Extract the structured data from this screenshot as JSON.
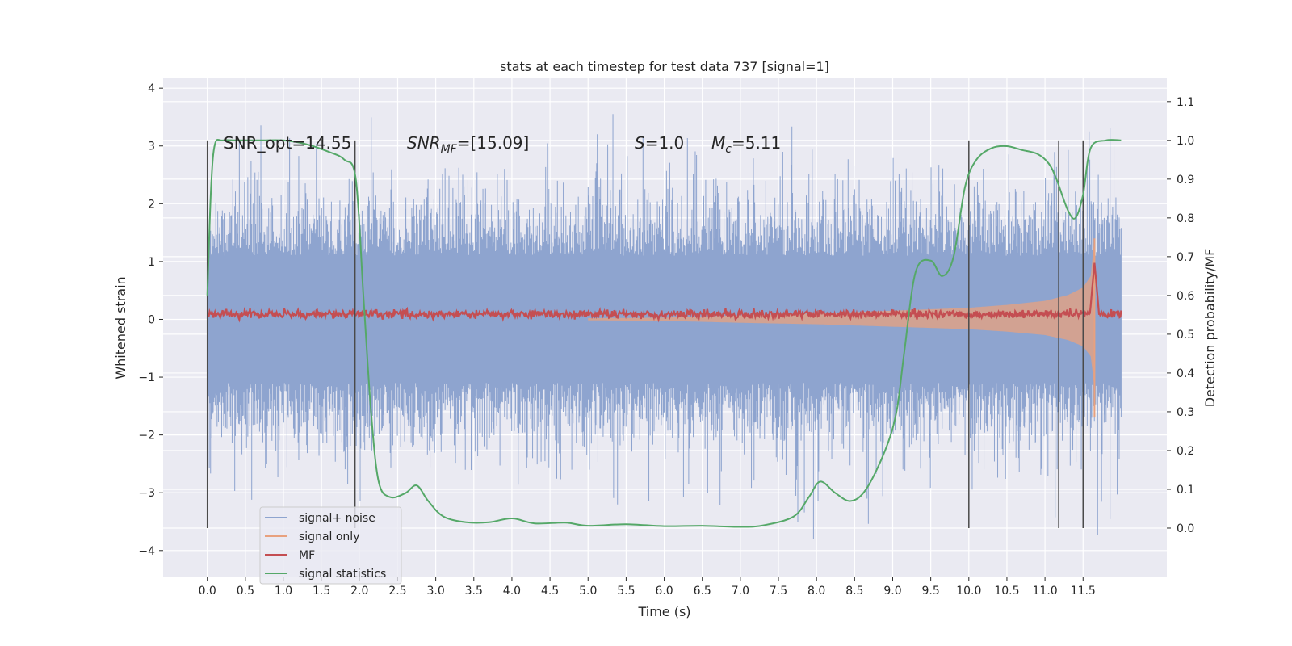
{
  "chart_data": {
    "type": "line",
    "title": "stats at each timestep for test data 737 [signal=1]",
    "xlabel": "Time (s)",
    "ylabel": "Whitened strain",
    "ylabel_right": "Detection probability/MF",
    "xlim": [
      -0.58,
      12.6
    ],
    "ylim": [
      -4.45,
      4.17
    ],
    "ylim_right": [
      -0.125,
      1.16
    ],
    "x_ticks": [
      0.0,
      0.5,
      1.0,
      1.5,
      2.0,
      2.5,
      3.0,
      3.5,
      4.0,
      4.5,
      5.0,
      5.5,
      6.0,
      6.5,
      7.0,
      7.5,
      8.0,
      8.5,
      9.0,
      9.5,
      10.0,
      10.5,
      11.0,
      11.5
    ],
    "x_tick_labels": [
      "0.0",
      "0.5",
      "1.0",
      "1.5",
      "2.0",
      "2.5",
      "3.0",
      "3.5",
      "4.0",
      "4.5",
      "5.0",
      "5.5",
      "6.0",
      "6.5",
      "7.0",
      "7.5",
      "8.0",
      "8.5",
      "9.0",
      "9.5",
      "10.0",
      "10.5",
      "11.0",
      "11.5"
    ],
    "y_ticks": [
      -4,
      -3,
      -2,
      -1,
      0,
      1,
      2,
      3,
      4
    ],
    "y_tick_labels": [
      "−4",
      "−3",
      "−2",
      "−1",
      "0",
      "1",
      "2",
      "3",
      "4"
    ],
    "y_ticks_right": [
      0.0,
      0.1,
      0.2,
      0.3,
      0.4,
      0.5,
      0.6,
      0.7,
      0.8,
      0.9,
      1.0,
      1.1
    ],
    "y_tick_labels_right": [
      "0.0",
      "0.1",
      "0.2",
      "0.3",
      "0.4",
      "0.5",
      "0.6",
      "0.7",
      "0.8",
      "0.9",
      "1.0",
      "1.1"
    ],
    "grid": true,
    "legend_position": "lower-left",
    "annotations": {
      "snr_opt": "SNR_opt=14.55",
      "snr_mf_base": "SNR",
      "snr_mf_sub": "MF",
      "snr_mf_value": "=[15.09]",
      "s_symbol": "S",
      "s_value": "=1.0",
      "mc_base": "M",
      "mc_sub": "c",
      "mc_value": "=5.11"
    },
    "vertical_lines_x": [
      0.0,
      1.94,
      10.0,
      11.18,
      11.5
    ],
    "vertical_lines_right_range": [
      0.0,
      1.0
    ],
    "series": [
      {
        "name": "signal+ noise",
        "color": "#8ea4cf",
        "axis": "left",
        "x_range": [
          0.0,
          12.0
        ],
        "envelope": {
          "core_abs": 1.1,
          "typical_abs": 1.9,
          "max_abs": 3.8
        }
      },
      {
        "name": "signal only",
        "color": "#e8a17e",
        "axis": "left",
        "envelope_x": [
          5.0,
          6.0,
          7.0,
          8.0,
          9.0,
          10.0,
          10.5,
          11.0,
          11.3,
          11.5,
          11.6,
          11.65,
          11.7
        ],
        "envelope_amp": [
          0.02,
          0.03,
          0.07,
          0.1,
          0.15,
          0.2,
          0.25,
          0.32,
          0.42,
          0.55,
          0.75,
          1.4,
          0.0
        ]
      },
      {
        "name": "MF",
        "color": "#c44e52",
        "axis": "left",
        "x_range": [
          0.0,
          12.0
        ],
        "baseline": 0.09,
        "noise_amp": 0.06,
        "peak": {
          "x": 11.65,
          "y": 0.98
        }
      },
      {
        "name": "signal statistics",
        "color": "#55a868",
        "axis": "right",
        "x": [
          0.0,
          0.05,
          0.1,
          0.2,
          0.4,
          0.7,
          1.0,
          1.3,
          1.6,
          1.8,
          1.95,
          2.05,
          2.15,
          2.25,
          2.4,
          2.6,
          2.75,
          2.9,
          3.1,
          3.4,
          3.7,
          4.0,
          4.3,
          4.7,
          5.0,
          5.5,
          6.0,
          6.5,
          7.0,
          7.3,
          7.7,
          7.9,
          8.05,
          8.25,
          8.45,
          8.65,
          8.9,
          9.05,
          9.15,
          9.3,
          9.5,
          9.65,
          9.8,
          9.95,
          10.1,
          10.3,
          10.5,
          10.7,
          10.9,
          11.05,
          11.15,
          11.3,
          11.4,
          11.5,
          11.6,
          11.8,
          12.0
        ],
        "values": [
          0.6,
          0.88,
          0.99,
          1.0,
          1.0,
          1.0,
          1.0,
          0.99,
          0.97,
          0.95,
          0.9,
          0.6,
          0.3,
          0.12,
          0.08,
          0.09,
          0.11,
          0.07,
          0.03,
          0.015,
          0.015,
          0.025,
          0.012,
          0.014,
          0.006,
          0.01,
          0.005,
          0.006,
          0.003,
          0.007,
          0.03,
          0.08,
          0.12,
          0.09,
          0.07,
          0.1,
          0.2,
          0.3,
          0.45,
          0.66,
          0.69,
          0.65,
          0.7,
          0.88,
          0.95,
          0.98,
          0.985,
          0.975,
          0.965,
          0.94,
          0.9,
          0.82,
          0.8,
          0.86,
          0.98,
          1.0,
          1.0
        ]
      }
    ]
  }
}
